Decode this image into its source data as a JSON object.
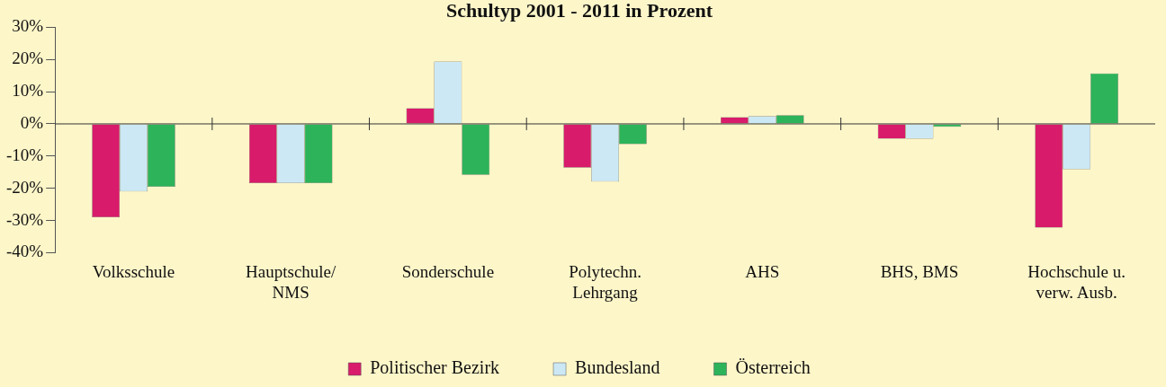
{
  "chart_data": {
    "type": "bar",
    "title": "Schultyp 2001 - 2011 in Prozent",
    "categories": [
      "Volksschule",
      "Hauptschule/\nNMS",
      "Sonderschule",
      "Polytechn.\nLehrgang",
      "AHS",
      "BHS, BMS",
      "Hochschule u.\nverw. Ausb."
    ],
    "series": [
      {
        "name": "Politischer Bezirk",
        "color": "#d81b6a",
        "values": [
          -29,
          -18.4,
          4.9,
          -13.6,
          2.1,
          -4.6,
          -32.2
        ]
      },
      {
        "name": "Bundesland",
        "color": "#cce8f5",
        "values": [
          -21,
          -18.4,
          19.4,
          -17.9,
          2.4,
          -4.6,
          -14.1
        ]
      },
      {
        "name": "Österreich",
        "color": "#2db35a",
        "values": [
          -19.5,
          -18.4,
          -15.8,
          -6.3,
          2.7,
          -0.9,
          15.7
        ]
      }
    ],
    "ylim": [
      -40,
      30
    ],
    "yticks": [
      {
        "value": -40,
        "label": "-40%"
      },
      {
        "value": -30,
        "label": "-30%"
      },
      {
        "value": -20,
        "label": "-20%"
      },
      {
        "value": -10,
        "label": "-10%"
      },
      {
        "value": 0,
        "label": "0%"
      },
      {
        "value": 10,
        "label": "10%"
      },
      {
        "value": 20,
        "label": "20%"
      },
      {
        "value": 30,
        "label": "30%"
      }
    ],
    "legend": "bottom"
  }
}
